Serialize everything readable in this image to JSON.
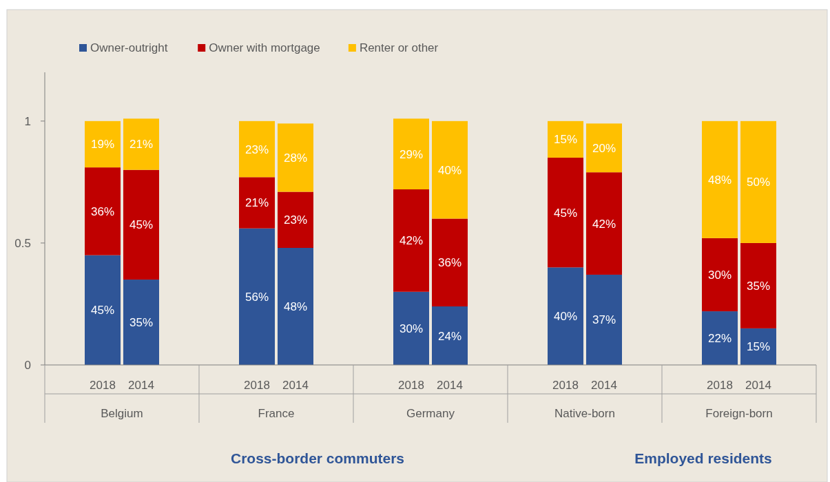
{
  "chart_data": {
    "type": "bar",
    "stacked": true,
    "categories": [
      null,
      "2018",
      "2014",
      null,
      null,
      "2018",
      "2014",
      null,
      null,
      "2018",
      "2014",
      null,
      null,
      "2018",
      "2014",
      null,
      null,
      "2018",
      "2014",
      null
    ],
    "series": [
      {
        "name": "Owner-outright",
        "color": "#2f5597",
        "values": [
          null,
          0.45,
          0.35,
          null,
          null,
          0.56,
          0.48,
          null,
          null,
          0.3,
          0.24,
          null,
          null,
          0.4,
          0.37,
          null,
          null,
          0.22,
          0.15,
          null
        ],
        "value_labels": [
          null,
          "45%",
          "35%",
          null,
          null,
          "56%",
          "48%",
          null,
          null,
          "30%",
          "24%",
          null,
          null,
          "40%",
          "37%",
          null,
          null,
          "22%",
          "15%",
          null
        ]
      },
      {
        "name": "Owner with mortgage",
        "color": "#c00000",
        "values": [
          null,
          0.36,
          0.45,
          null,
          null,
          0.21,
          0.23,
          null,
          null,
          0.42,
          0.36,
          null,
          null,
          0.45,
          0.42,
          null,
          null,
          0.3,
          0.35,
          null
        ],
        "value_labels": [
          null,
          "36%",
          "45%",
          null,
          null,
          "21%",
          "23%",
          null,
          null,
          "42%",
          "36%",
          null,
          null,
          "45%",
          "42%",
          null,
          null,
          "30%",
          "35%",
          null
        ]
      },
      {
        "name": "Renter or other",
        "color": "#ffc000",
        "values": [
          null,
          0.19,
          0.21,
          null,
          null,
          0.23,
          0.28,
          null,
          null,
          0.29,
          0.4,
          null,
          null,
          0.15,
          0.2,
          null,
          null,
          0.48,
          0.5,
          null
        ],
        "value_labels": [
          null,
          "19%",
          "21%",
          null,
          null,
          "23%",
          "28%",
          null,
          null,
          "29%",
          "40%",
          null,
          null,
          "15%",
          "20%",
          null,
          null,
          "48%",
          "50%",
          null
        ]
      }
    ],
    "ylim": [
      0,
      1.2
    ],
    "yticks": [
      0,
      0.5,
      1
    ],
    "grid": false,
    "legend": "top left",
    "annotations": [
      "Belgium",
      "France",
      "Germany",
      "Native-born",
      "Foreign-born",
      "Cross-border commuters",
      "Employed residents"
    ]
  }
}
